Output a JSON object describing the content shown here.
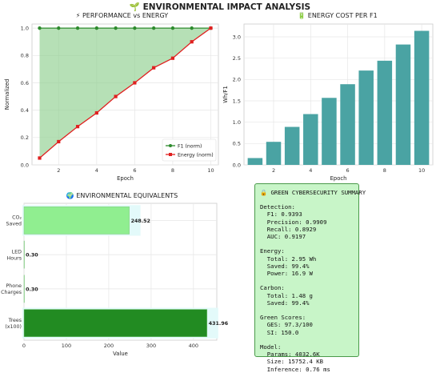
{
  "suptitle": "🌱 ENVIRONMENTAL IMPACT ANALYSIS",
  "panels": {
    "perf_title": "⚡ PERFORMANCE vs ENERGY",
    "cost_title": "🔋 ENERGY COST PER F1",
    "equiv_title": "🌍 ENVIRONMENTAL EQUIVALENTS"
  },
  "chart_data": [
    {
      "type": "line",
      "title": "⚡ PERFORMANCE vs ENERGY",
      "xlabel": "Epoch",
      "ylabel": "Normalized",
      "xlim": [
        0.6,
        10.4
      ],
      "ylim": [
        0,
        1.03
      ],
      "xticks": [
        2,
        4,
        6,
        8,
        10
      ],
      "yticks": [
        0.0,
        0.2,
        0.4,
        0.6,
        0.8,
        1.0
      ],
      "x": [
        1,
        2,
        3,
        4,
        5,
        6,
        7,
        8,
        9,
        10
      ],
      "series": [
        {
          "name": "F1 (norm)",
          "color": "#2e8b2e",
          "marker": "circle",
          "values": [
            1,
            1,
            1,
            1,
            1,
            1,
            1,
            1,
            1,
            1
          ]
        },
        {
          "name": "Energy (norm)",
          "color": "#e02020",
          "marker": "square",
          "values": [
            0.05,
            0.17,
            0.28,
            0.38,
            0.5,
            0.6,
            0.71,
            0.78,
            0.9,
            1.0
          ]
        }
      ],
      "fill_between": {
        "color": "#8fcf8f"
      },
      "legend": "bottom-right",
      "grid": true
    },
    {
      "type": "bar",
      "title": "🔋 ENERGY COST PER F1",
      "xlabel": "Epoch",
      "ylabel": "Wh/F1",
      "x": [
        1,
        2,
        3,
        4,
        5,
        6,
        7,
        8,
        9,
        10
      ],
      "values": [
        0.16,
        0.54,
        0.89,
        1.19,
        1.57,
        1.89,
        2.21,
        2.44,
        2.82,
        3.14
      ],
      "xticks": [
        2,
        4,
        6,
        8,
        10
      ],
      "yticks": [
        0.0,
        0.5,
        1.0,
        1.5,
        2.0,
        2.5,
        3.0
      ],
      "ylim": [
        0,
        3.3
      ],
      "color": "#4aa3a3",
      "grid": true
    },
    {
      "type": "bar",
      "orientation": "horizontal",
      "title": "🌍 ENVIRONMENTAL EQUIVALENTS",
      "xlabel": "Value",
      "categories": [
        "CO₂\nSaved",
        "LED\nHours",
        "Phone\nCharges",
        "Trees\n(x100)"
      ],
      "values": [
        248.52,
        0.3,
        0.3,
        431.96
      ],
      "value_labels": [
        "248.52",
        "0.30",
        "0.30",
        "431.96"
      ],
      "colors": [
        "#90ee90",
        "#90ee90",
        "#90ee90",
        "#228b22"
      ],
      "xticks": [
        0,
        100,
        200,
        300,
        400
      ],
      "xlim": [
        0,
        455
      ],
      "grid": true
    }
  ],
  "summary": {
    "title": "🔒 GREEN CYBERSECURITY SUMMARY",
    "body": "Detection:\n  F1: 0.9393\n  Precision: 0.9909\n  Recall: 0.8929\n  AUC: 0.9197\n\nEnergy:\n  Total: 2.95 Wh\n  Saved: 99.4%\n  Power: 16.9 W\n\nCarbon:\n  Total: 1.48 g\n  Saved: 99.4%\n\nGreen Scores:\n  GES: 97.3/100\n  SI: 150.0\n\nModel:\n  Params: 4032.6K\n  Size: 15752.4 KB\n  Inference: 0.76 ms"
  }
}
